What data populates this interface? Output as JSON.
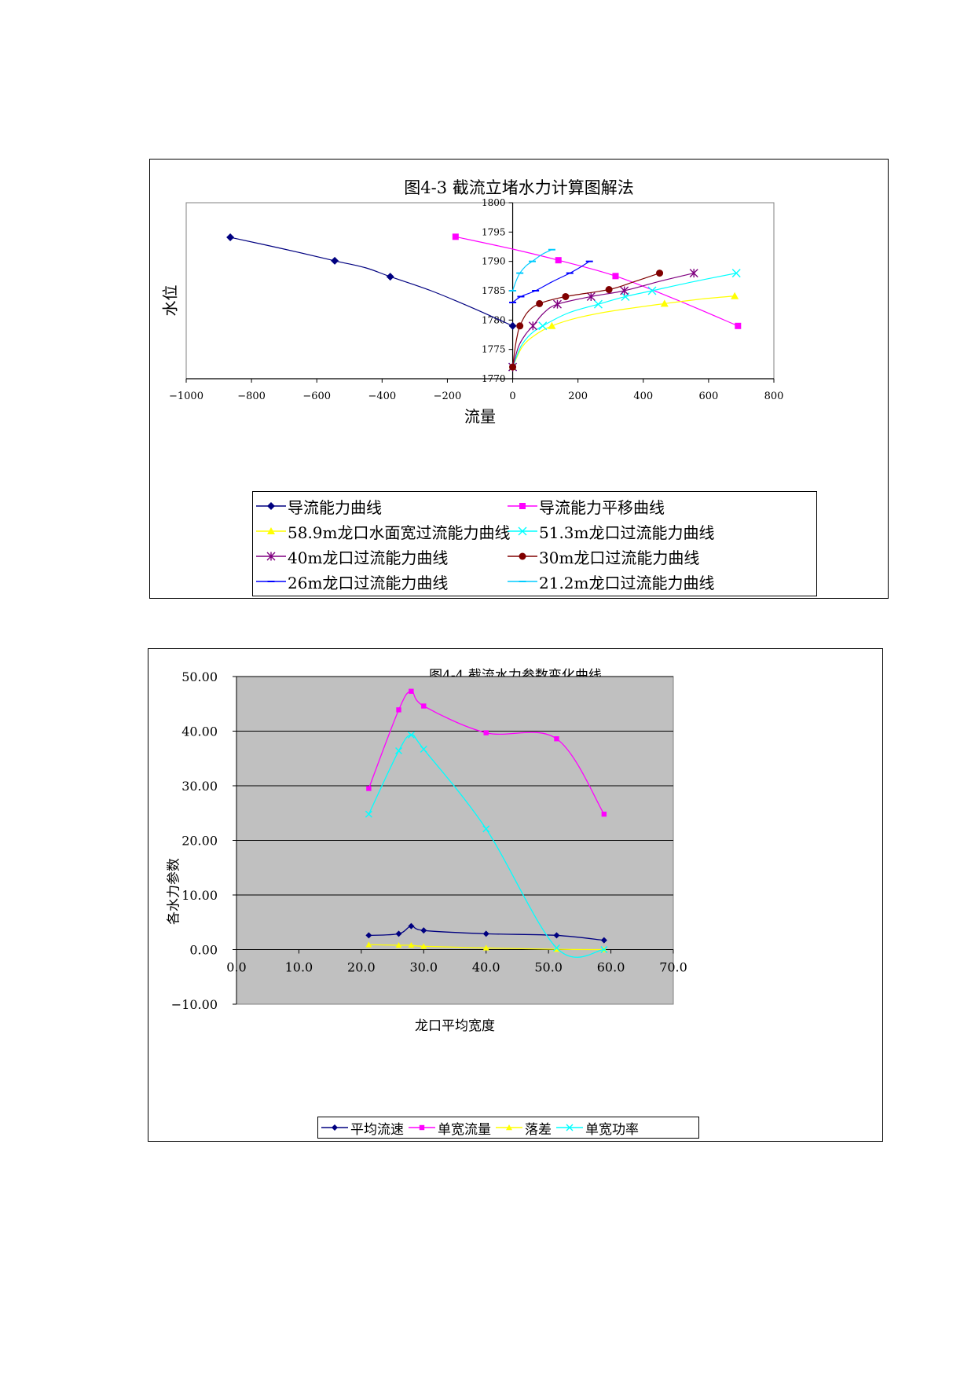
{
  "chart_data": [
    {
      "type": "line",
      "title": "图4-3 截流立堵水力计算图解法",
      "xlabel": "流量",
      "ylabel": "水位",
      "xlim": [
        -1000,
        800
      ],
      "ylim": [
        1770,
        1800
      ],
      "xticks": [
        "−1000",
        "−800",
        "−600",
        "−400",
        "−200",
        "0",
        "200",
        "400",
        "600",
        "800"
      ],
      "yticks": [
        "1770",
        "1775",
        "1780",
        "1785",
        "1790",
        "1795",
        "1800"
      ],
      "grid": false,
      "legend_position": "bottom",
      "series": [
        {
          "name": "导流能力曲线",
          "color": "#000080",
          "marker": "diamond",
          "points": [
            [
              -865,
              1794.1
            ],
            [
              -545,
              1790.1
            ],
            [
              -375,
              1787.4
            ],
            [
              0,
              1779
            ]
          ],
          "curve": [
            [
              -865,
              1794.1
            ],
            [
              -700,
              1792.1
            ],
            [
              -545,
              1790.1
            ],
            [
              -450,
              1788.9
            ],
            [
              -375,
              1787.4
            ],
            [
              -250,
              1785
            ],
            [
              -120,
              1782
            ],
            [
              0,
              1779
            ]
          ]
        },
        {
          "name": "导流能力平移曲线",
          "color": "#FF00FF",
          "marker": "square",
          "points": [
            [
              -175,
              1794.2
            ],
            [
              140,
              1790.2
            ],
            [
              315,
              1787.5
            ],
            [
              690,
              1779
            ]
          ],
          "curve": [
            [
              -175,
              1794.2
            ],
            [
              0,
              1792.1
            ],
            [
              140,
              1790.2
            ],
            [
              315,
              1787.5
            ],
            [
              500,
              1783.5
            ],
            [
              690,
              1779
            ]
          ]
        },
        {
          "name": "58.9m龙口水面宽过流能力曲线",
          "color": "#FFFF00",
          "marker": "triangle",
          "points": [
            [
              0,
              1772
            ],
            [
              120,
              1779
            ],
            [
              465,
              1782.8
            ],
            [
              680,
              1784.1
            ]
          ],
          "curve": [
            [
              0,
              1772
            ],
            [
              30,
              1775.5
            ],
            [
              70,
              1777.5
            ],
            [
              120,
              1779
            ],
            [
              200,
              1780.4
            ],
            [
              300,
              1781.5
            ],
            [
              465,
              1782.8
            ],
            [
              580,
              1783.6
            ],
            [
              680,
              1784.1
            ]
          ]
        },
        {
          "name": "51.3m龙口过流能力曲线",
          "color": "#00FFFF",
          "marker": "x",
          "points": [
            [
              0,
              1772
            ],
            [
              92,
              1779
            ],
            [
              262,
              1782.7
            ],
            [
              345,
              1784
            ],
            [
              427,
              1785
            ],
            [
              685,
              1788
            ]
          ],
          "curve": [
            [
              0,
              1772
            ],
            [
              25,
              1775.5
            ],
            [
              55,
              1777.6
            ],
            [
              92,
              1779
            ],
            [
              170,
              1781.2
            ],
            [
              262,
              1782.7
            ],
            [
              345,
              1784
            ],
            [
              427,
              1785
            ],
            [
              550,
              1786.5
            ],
            [
              685,
              1788
            ]
          ]
        },
        {
          "name": "40m龙口过流能力曲线",
          "color": "#800080",
          "marker": "star",
          "points": [
            [
              0,
              1772
            ],
            [
              62,
              1779
            ],
            [
              137,
              1782.7
            ],
            [
              240,
              1784
            ],
            [
              342,
              1785
            ],
            [
              555,
              1788
            ]
          ],
          "curve": [
            [
              0,
              1772
            ],
            [
              18,
              1775.5
            ],
            [
              40,
              1777.6
            ],
            [
              62,
              1779
            ],
            [
              95,
              1781.2
            ],
            [
              137,
              1782.7
            ],
            [
              240,
              1784
            ],
            [
              342,
              1785
            ],
            [
              450,
              1786.6
            ],
            [
              555,
              1788
            ]
          ]
        },
        {
          "name": "30m龙口过流能力曲线",
          "color": "#800000",
          "marker": "circle",
          "points": [
            [
              0,
              1772
            ],
            [
              22,
              1779
            ],
            [
              82,
              1782.8
            ],
            [
              162,
              1784
            ],
            [
              295,
              1785.2
            ],
            [
              450,
              1788
            ]
          ],
          "curve": [
            [
              0,
              1772
            ],
            [
              8,
              1775.5
            ],
            [
              15,
              1777.6
            ],
            [
              22,
              1779
            ],
            [
              45,
              1781.3
            ],
            [
              82,
              1782.8
            ],
            [
              162,
              1784
            ],
            [
              295,
              1785.2
            ],
            [
              370,
              1786.5
            ],
            [
              450,
              1788
            ]
          ]
        },
        {
          "name": "26m龙口过流能力曲线",
          "color": "#0000FF",
          "marker": "dash",
          "points": [
            [
              0,
              1783
            ],
            [
              25,
              1784
            ],
            [
              70,
              1785
            ],
            [
              175,
              1788
            ],
            [
              235,
              1790
            ]
          ],
          "curve": [
            [
              0,
              1783
            ],
            [
              25,
              1784
            ],
            [
              70,
              1785
            ],
            [
              120,
              1786.5
            ],
            [
              175,
              1788
            ],
            [
              210,
              1789.1
            ],
            [
              235,
              1790
            ]
          ]
        },
        {
          "name": "21.2m龙口过流能力曲线",
          "color": "#00CCFF",
          "marker": "dash",
          "points": [
            [
              0,
              1785
            ],
            [
              22,
              1788
            ],
            [
              60,
              1790
            ],
            [
              120,
              1792
            ]
          ],
          "curve": [
            [
              0,
              1785
            ],
            [
              10,
              1786.6
            ],
            [
              22,
              1788
            ],
            [
              40,
              1789.2
            ],
            [
              60,
              1790
            ],
            [
              90,
              1791.2
            ],
            [
              120,
              1792
            ]
          ]
        }
      ]
    },
    {
      "type": "line",
      "title": "图4-4 截流水力参数变化曲线",
      "xlabel": "龙口平均宽度",
      "ylabel": "各水力参数",
      "xlim": [
        0,
        70
      ],
      "ylim": [
        -10,
        50
      ],
      "xticks": [
        "0.0",
        "10.0",
        "20.0",
        "30.0",
        "40.0",
        "50.0",
        "60.0",
        "70.0"
      ],
      "yticks": [
        "−10.00",
        "0.00",
        "10.00",
        "20.00",
        "30.00",
        "40.00",
        "50.00"
      ],
      "grid": true,
      "plot_background": "#C0C0C0",
      "legend_position": "bottom",
      "series": [
        {
          "name": "平均流速",
          "color": "#000080",
          "marker": "diamond",
          "points": [
            [
              21.2,
              2.6
            ],
            [
              26,
              2.9
            ],
            [
              28,
              4.3
            ],
            [
              30,
              3.5
            ],
            [
              40,
              2.9
            ],
            [
              51.3,
              2.6
            ],
            [
              58.9,
              1.7
            ]
          ]
        },
        {
          "name": "单宽流量",
          "color": "#FF00FF",
          "marker": "square",
          "points": [
            [
              21.2,
              29.5
            ],
            [
              26,
              43.9
            ],
            [
              28,
              47.3
            ],
            [
              30,
              44.6
            ],
            [
              40,
              39.7
            ],
            [
              51.3,
              38.6
            ],
            [
              58.9,
              24.8
            ]
          ]
        },
        {
          "name": "落差",
          "color": "#FFFF00",
          "marker": "triangle",
          "points": [
            [
              21.2,
              0.9
            ],
            [
              26,
              0.8
            ],
            [
              28,
              0.8
            ],
            [
              30,
              0.6
            ],
            [
              40,
              0.3
            ],
            [
              51.3,
              0.05
            ],
            [
              58.9,
              0
            ]
          ]
        },
        {
          "name": "单宽功率",
          "color": "#00FFFF",
          "marker": "x",
          "points": [
            [
              21.2,
              24.8
            ],
            [
              26,
              36.4
            ],
            [
              28,
              39.3
            ],
            [
              30,
              36.7
            ],
            [
              40,
              22.1
            ],
            [
              51.3,
              0.3
            ],
            [
              58.9,
              0
            ]
          ]
        }
      ]
    }
  ]
}
